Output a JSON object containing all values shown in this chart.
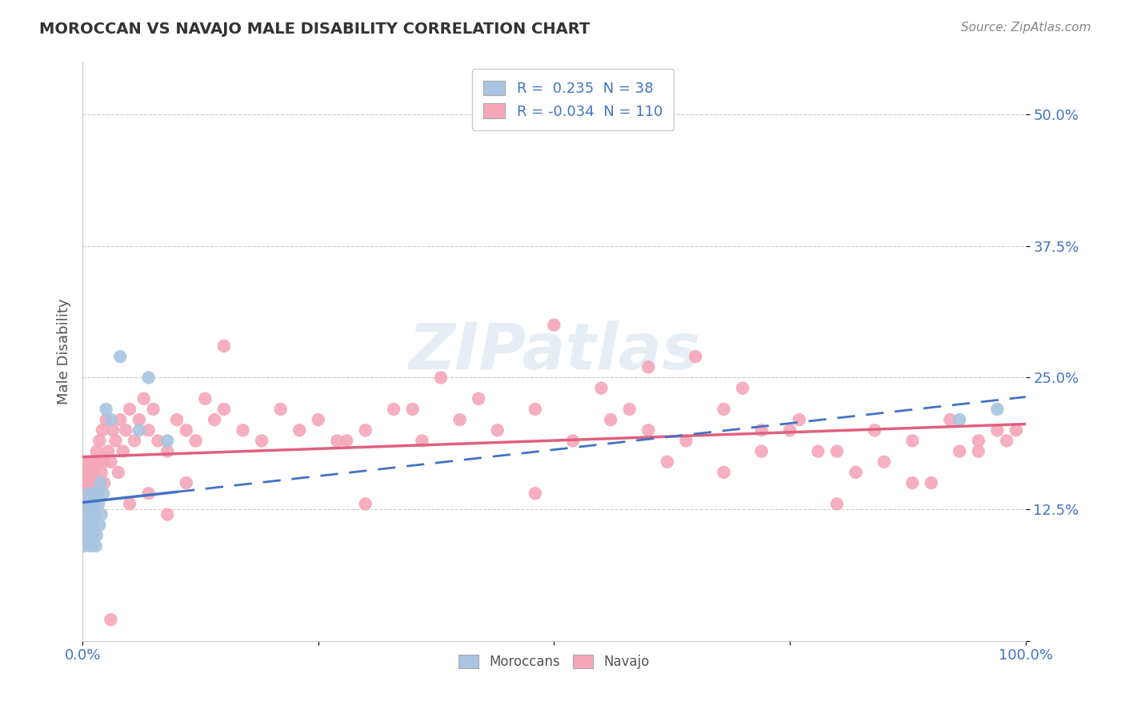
{
  "title": "MOROCCAN VS NAVAJO MALE DISABILITY CORRELATION CHART",
  "source": "Source: ZipAtlas.com",
  "ylabel": "Male Disability",
  "xlim": [
    0.0,
    1.0
  ],
  "ylim": [
    0.0,
    0.55
  ],
  "yticks": [
    0.0,
    0.125,
    0.25,
    0.375,
    0.5
  ],
  "ytick_labels": [
    "",
    "12.5%",
    "25.0%",
    "37.5%",
    "50.0%"
  ],
  "xticks": [
    0.0,
    0.25,
    0.5,
    0.75,
    1.0
  ],
  "xtick_labels": [
    "0.0%",
    "",
    "",
    "",
    "100.0%"
  ],
  "moroccan_R": 0.235,
  "moroccan_N": 38,
  "navajo_R": -0.034,
  "navajo_N": 110,
  "moroccan_color": "#a8c4e0",
  "navajo_color": "#f4a7b9",
  "moroccan_line_color": "#4472c4",
  "navajo_line_color": "#e06080",
  "background_color": "#ffffff",
  "moroccan_x": [
    0.001,
    0.002,
    0.003,
    0.003,
    0.004,
    0.004,
    0.005,
    0.005,
    0.006,
    0.006,
    0.007,
    0.007,
    0.008,
    0.008,
    0.009,
    0.009,
    0.01,
    0.01,
    0.01,
    0.011,
    0.012,
    0.013,
    0.014,
    0.015,
    0.016,
    0.017,
    0.018,
    0.019,
    0.02,
    0.022,
    0.025,
    0.03,
    0.04,
    0.06,
    0.07,
    0.09,
    0.93,
    0.97
  ],
  "moroccan_y": [
    0.1,
    0.09,
    0.11,
    0.13,
    0.1,
    0.12,
    0.095,
    0.11,
    0.1,
    0.13,
    0.11,
    0.14,
    0.1,
    0.13,
    0.12,
    0.09,
    0.1,
    0.12,
    0.14,
    0.11,
    0.13,
    0.12,
    0.09,
    0.1,
    0.14,
    0.13,
    0.11,
    0.15,
    0.12,
    0.14,
    0.22,
    0.21,
    0.27,
    0.2,
    0.25,
    0.19,
    0.21,
    0.22
  ],
  "navajo_x": [
    0.001,
    0.002,
    0.003,
    0.003,
    0.004,
    0.004,
    0.005,
    0.005,
    0.006,
    0.006,
    0.007,
    0.007,
    0.008,
    0.008,
    0.009,
    0.01,
    0.01,
    0.011,
    0.012,
    0.013,
    0.014,
    0.015,
    0.016,
    0.017,
    0.018,
    0.019,
    0.02,
    0.021,
    0.022,
    0.023,
    0.025,
    0.027,
    0.03,
    0.032,
    0.035,
    0.038,
    0.04,
    0.043,
    0.046,
    0.05,
    0.055,
    0.06,
    0.065,
    0.07,
    0.075,
    0.08,
    0.09,
    0.1,
    0.11,
    0.12,
    0.13,
    0.14,
    0.15,
    0.17,
    0.19,
    0.21,
    0.23,
    0.25,
    0.27,
    0.3,
    0.33,
    0.36,
    0.4,
    0.44,
    0.48,
    0.52,
    0.56,
    0.6,
    0.64,
    0.68,
    0.72,
    0.76,
    0.8,
    0.84,
    0.88,
    0.92,
    0.95,
    0.97,
    0.98,
    0.99,
    0.15,
    0.35,
    0.55,
    0.28,
    0.42,
    0.62,
    0.72,
    0.82,
    0.9,
    0.6,
    0.7,
    0.75,
    0.85,
    0.95,
    0.38,
    0.48,
    0.58,
    0.68,
    0.78,
    0.88,
    0.05,
    0.07,
    0.09,
    0.11,
    0.3,
    0.5,
    0.65,
    0.8,
    0.03,
    0.93
  ],
  "navajo_y": [
    0.15,
    0.14,
    0.16,
    0.13,
    0.15,
    0.17,
    0.14,
    0.16,
    0.15,
    0.13,
    0.16,
    0.14,
    0.15,
    0.17,
    0.14,
    0.16,
    0.15,
    0.17,
    0.14,
    0.16,
    0.15,
    0.18,
    0.14,
    0.17,
    0.19,
    0.15,
    0.16,
    0.2,
    0.17,
    0.15,
    0.21,
    0.18,
    0.17,
    0.2,
    0.19,
    0.16,
    0.21,
    0.18,
    0.2,
    0.22,
    0.19,
    0.21,
    0.23,
    0.2,
    0.22,
    0.19,
    0.18,
    0.21,
    0.2,
    0.19,
    0.23,
    0.21,
    0.22,
    0.2,
    0.19,
    0.22,
    0.2,
    0.21,
    0.19,
    0.2,
    0.22,
    0.19,
    0.21,
    0.2,
    0.22,
    0.19,
    0.21,
    0.2,
    0.19,
    0.22,
    0.2,
    0.21,
    0.18,
    0.2,
    0.19,
    0.21,
    0.18,
    0.2,
    0.19,
    0.2,
    0.28,
    0.22,
    0.24,
    0.19,
    0.23,
    0.17,
    0.18,
    0.16,
    0.15,
    0.26,
    0.24,
    0.2,
    0.17,
    0.19,
    0.25,
    0.14,
    0.22,
    0.16,
    0.18,
    0.15,
    0.13,
    0.14,
    0.12,
    0.15,
    0.13,
    0.3,
    0.27,
    0.13,
    0.02,
    0.18
  ]
}
